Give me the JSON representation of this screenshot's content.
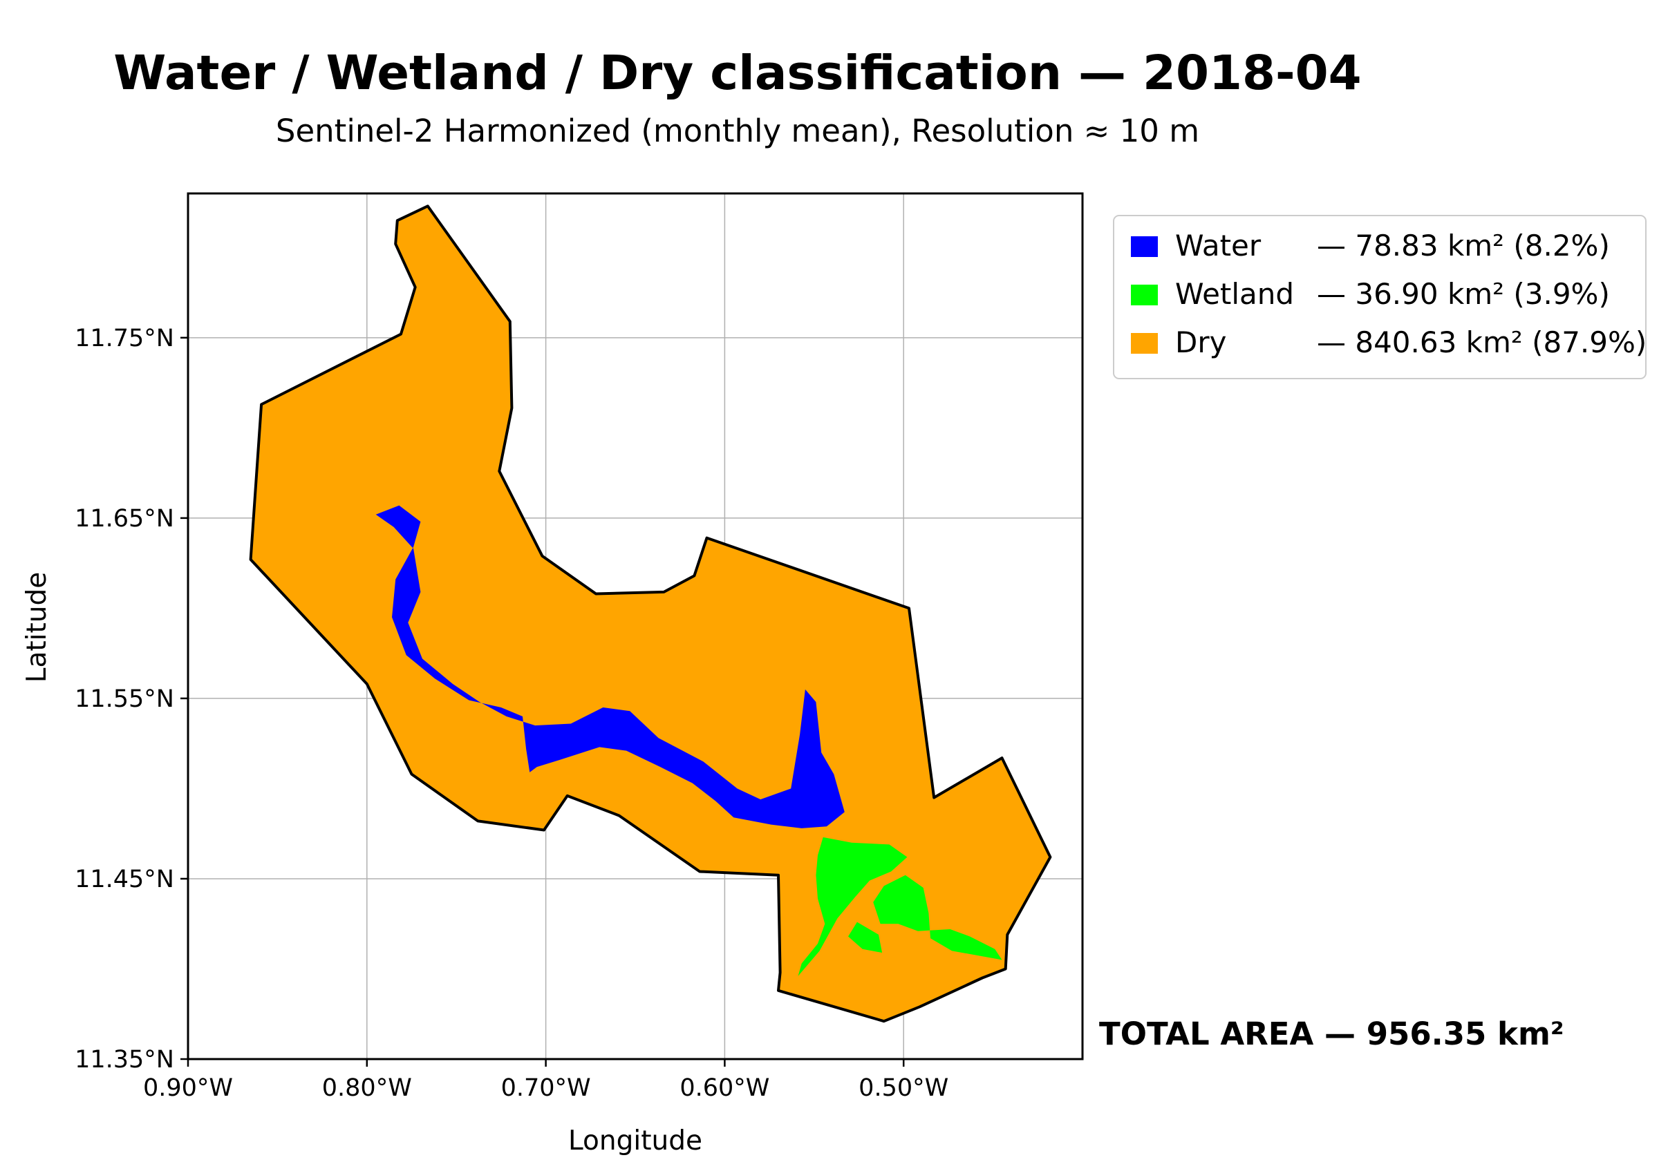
{
  "title": "Water / Wetland / Dry classification — 2018-04",
  "subtitle": "Sentinel-2 Harmonized (monthly mean), Resolution ≈ 10 m",
  "axes": {
    "x_label": "Longitude",
    "y_label": "Latitude",
    "x_range": [
      -0.9,
      -0.4
    ],
    "y_range": [
      11.35,
      11.83
    ],
    "x_ticks": [
      {
        "value": -0.9,
        "label": "0.90°W"
      },
      {
        "value": -0.8,
        "label": "0.80°W"
      },
      {
        "value": -0.7,
        "label": "0.70°W"
      },
      {
        "value": -0.6,
        "label": "0.60°W"
      },
      {
        "value": -0.5,
        "label": "0.50°W"
      }
    ],
    "y_ticks": [
      {
        "value": 11.35,
        "label": "11.35°N"
      },
      {
        "value": 11.45,
        "label": "11.45°N"
      },
      {
        "value": 11.55,
        "label": "11.55°N"
      },
      {
        "value": 11.65,
        "label": "11.65°N"
      },
      {
        "value": 11.75,
        "label": "11.75°N"
      }
    ],
    "grid": true
  },
  "legend": {
    "placement": "outside-top-right",
    "items": [
      {
        "key": "water",
        "label": "Water",
        "text": "— 78.83 km² (8.2%)",
        "color": "#0000ff"
      },
      {
        "key": "wetland",
        "label": "Wetland",
        "text": "— 36.90 km² (3.9%)",
        "color": "#00ff00"
      },
      {
        "key": "dry",
        "label": "Dry",
        "text": "— 840.63 km² (87.9%)",
        "color": "#ffa500"
      }
    ]
  },
  "total_area": "TOTAL AREA — 956.35 km²",
  "map": {
    "boundary": [
      [
        -0.766,
        11.823
      ],
      [
        -0.783,
        11.815
      ],
      [
        -0.784,
        11.802
      ],
      [
        -0.773,
        11.778
      ],
      [
        -0.781,
        11.752
      ],
      [
        -0.859,
        11.713
      ],
      [
        -0.865,
        11.627
      ],
      [
        -0.8,
        11.558
      ],
      [
        -0.775,
        11.508
      ],
      [
        -0.738,
        11.482
      ],
      [
        -0.701,
        11.477
      ],
      [
        -0.688,
        11.496
      ],
      [
        -0.659,
        11.485
      ],
      [
        -0.614,
        11.454
      ],
      [
        -0.57,
        11.452
      ],
      [
        -0.569,
        11.398
      ],
      [
        -0.57,
        11.388
      ],
      [
        -0.511,
        11.371
      ],
      [
        -0.491,
        11.379
      ],
      [
        -0.456,
        11.395
      ],
      [
        -0.443,
        11.4
      ],
      [
        -0.442,
        11.419
      ],
      [
        -0.418,
        11.462
      ],
      [
        -0.445,
        11.517
      ],
      [
        -0.483,
        11.495
      ],
      [
        -0.497,
        11.6
      ],
      [
        -0.61,
        11.639
      ],
      [
        -0.617,
        11.618
      ],
      [
        -0.634,
        11.609
      ],
      [
        -0.672,
        11.608
      ],
      [
        -0.702,
        11.629
      ],
      [
        -0.726,
        11.676
      ],
      [
        -0.719,
        11.711
      ],
      [
        -0.72,
        11.759
      ]
    ],
    "water": [
      [
        -0.795,
        11.652
      ],
      [
        -0.785,
        11.645
      ],
      [
        -0.774,
        11.633
      ],
      [
        -0.77,
        11.609
      ],
      [
        -0.777,
        11.592
      ],
      [
        -0.769,
        11.572
      ],
      [
        -0.752,
        11.558
      ],
      [
        -0.737,
        11.548
      ],
      [
        -0.722,
        11.54
      ],
      [
        -0.706,
        11.535
      ],
      [
        -0.686,
        11.536
      ],
      [
        -0.668,
        11.545
      ],
      [
        -0.653,
        11.543
      ],
      [
        -0.637,
        11.528
      ],
      [
        -0.612,
        11.515
      ],
      [
        -0.593,
        11.5
      ],
      [
        -0.58,
        11.494
      ],
      [
        -0.563,
        11.5
      ],
      [
        -0.558,
        11.53
      ],
      [
        -0.555,
        11.555
      ],
      [
        -0.549,
        11.548
      ],
      [
        -0.546,
        11.52
      ],
      [
        -0.539,
        11.508
      ],
      [
        -0.533,
        11.487
      ],
      [
        -0.543,
        11.479
      ],
      [
        -0.557,
        11.478
      ],
      [
        -0.574,
        11.48
      ],
      [
        -0.595,
        11.484
      ],
      [
        -0.605,
        11.493
      ],
      [
        -0.618,
        11.503
      ],
      [
        -0.636,
        11.512
      ],
      [
        -0.655,
        11.521
      ],
      [
        -0.67,
        11.523
      ],
      [
        -0.692,
        11.516
      ],
      [
        -0.705,
        11.512
      ],
      [
        -0.709,
        11.509
      ],
      [
        -0.711,
        11.522
      ],
      [
        -0.713,
        11.54
      ],
      [
        -0.725,
        11.545
      ],
      [
        -0.743,
        11.549
      ],
      [
        -0.762,
        11.561
      ],
      [
        -0.778,
        11.574
      ],
      [
        -0.786,
        11.595
      ],
      [
        -0.784,
        11.616
      ],
      [
        -0.774,
        11.634
      ],
      [
        -0.77,
        11.648
      ],
      [
        -0.782,
        11.657
      ]
    ],
    "wetland": [
      [
        [
          -0.545,
          11.473
        ],
        [
          -0.529,
          11.47
        ],
        [
          -0.508,
          11.469
        ],
        [
          -0.498,
          11.462
        ],
        [
          -0.507,
          11.454
        ],
        [
          -0.519,
          11.449
        ],
        [
          -0.527,
          11.44
        ],
        [
          -0.537,
          11.428
        ],
        [
          -0.547,
          11.41
        ],
        [
          -0.559,
          11.396
        ],
        [
          -0.557,
          11.403
        ],
        [
          -0.548,
          11.414
        ],
        [
          -0.544,
          11.425
        ],
        [
          -0.548,
          11.439
        ],
        [
          -0.549,
          11.452
        ],
        [
          -0.548,
          11.463
        ]
      ],
      [
        [
          -0.499,
          11.452
        ],
        [
          -0.489,
          11.445
        ],
        [
          -0.486,
          11.431
        ],
        [
          -0.485,
          11.417
        ],
        [
          -0.473,
          11.41
        ],
        [
          -0.456,
          11.407
        ],
        [
          -0.445,
          11.405
        ],
        [
          -0.449,
          11.411
        ],
        [
          -0.463,
          11.418
        ],
        [
          -0.474,
          11.422
        ],
        [
          -0.492,
          11.421
        ],
        [
          -0.503,
          11.425
        ],
        [
          -0.513,
          11.425
        ],
        [
          -0.517,
          11.437
        ],
        [
          -0.511,
          11.446
        ]
      ],
      [
        [
          -0.526,
          11.426
        ],
        [
          -0.514,
          11.419
        ],
        [
          -0.512,
          11.409
        ],
        [
          -0.523,
          11.411
        ],
        [
          -0.531,
          11.418
        ]
      ]
    ]
  }
}
